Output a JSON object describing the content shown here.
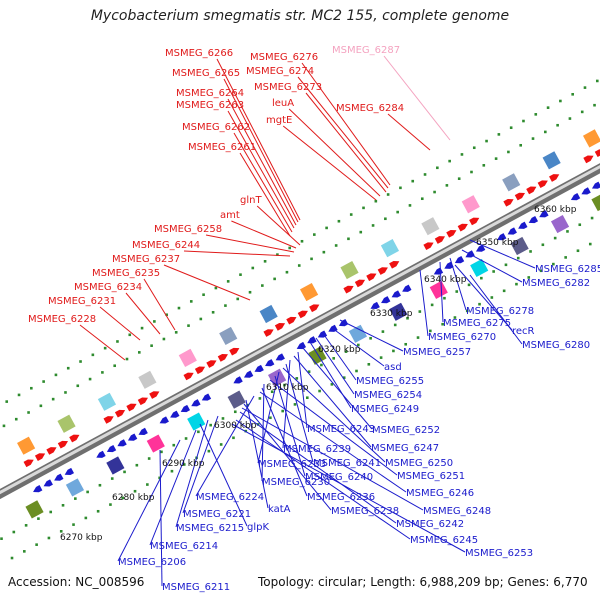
{
  "title": "Mycobacterium smegmatis str. MC2 155, complete genome",
  "footer": {
    "accession": "Accession: NC_008596",
    "topology": "Topology: circular; Length: 6,988,209 bp; Genes: 6,770"
  },
  "colors": {
    "forward_label": "#e01b1b",
    "reverse_label": "#1b1bcc",
    "faded_label": "#f4a3c0",
    "backbone": "#9a9a9a",
    "tick_dot": "#2e8b2e"
  },
  "kbp_ticks": [
    {
      "label": "6270 kbp"
    },
    {
      "label": "6280 kbp"
    },
    {
      "label": "6290 kbp"
    },
    {
      "label": "6300 kbp"
    },
    {
      "label": "6310 kbp"
    },
    {
      "label": "6320 kbp"
    },
    {
      "label": "6330 kbp"
    },
    {
      "label": "6340 kbp"
    },
    {
      "label": "6350 kbp"
    },
    {
      "label": "6360 kbp"
    }
  ],
  "forward_genes": [
    {
      "label": "MSMEG_6266"
    },
    {
      "label": "MSMEG_6265"
    },
    {
      "label": "MSMEG_6264"
    },
    {
      "label": "MSMEG_6263"
    },
    {
      "label": "MSMEG_6262"
    },
    {
      "label": "MSMEG_6261"
    },
    {
      "label": "MSMEG_6276"
    },
    {
      "label": "MSMEG_6274"
    },
    {
      "label": "MSMEG_6273"
    },
    {
      "label": "leuA"
    },
    {
      "label": "mgtE"
    },
    {
      "label": "MSMEG_6284"
    },
    {
      "label": "MSMEG_6287"
    },
    {
      "label": "glnT"
    },
    {
      "label": "amt"
    },
    {
      "label": "MSMEG_6258"
    },
    {
      "label": "MSMEG_6244"
    },
    {
      "label": "MSMEG_6237"
    },
    {
      "label": "MSMEG_6235"
    },
    {
      "label": "MSMEG_6234"
    },
    {
      "label": "MSMEG_6231"
    },
    {
      "label": "MSMEG_6228"
    }
  ],
  "reverse_genes": [
    {
      "label": "MSMEG_6285"
    },
    {
      "label": "MSMEG_6282"
    },
    {
      "label": "MSMEG_6278"
    },
    {
      "label": "MSMEG_6275"
    },
    {
      "label": "recR"
    },
    {
      "label": "MSMEG_6270"
    },
    {
      "label": "MSMEG_6280"
    },
    {
      "label": "MSMEG_6257"
    },
    {
      "label": "asd"
    },
    {
      "label": "MSMEG_6255"
    },
    {
      "label": "MSMEG_6254"
    },
    {
      "label": "MSMEG_6249"
    },
    {
      "label": "MSMEG_6252"
    },
    {
      "label": "MSMEG_6243"
    },
    {
      "label": "MSMEG_6247"
    },
    {
      "label": "MSMEG_6239"
    },
    {
      "label": "MSMEG_6241"
    },
    {
      "label": "MSMEG_6250"
    },
    {
      "label": "MSMEG_6233"
    },
    {
      "label": "MSMEG_6240"
    },
    {
      "label": "MSMEG_6251"
    },
    {
      "label": "MSMEG_6230"
    },
    {
      "label": "MSMEG_6236"
    },
    {
      "label": "MSMEG_6246"
    },
    {
      "label": "MSMEG_6224"
    },
    {
      "label": "katA"
    },
    {
      "label": "MSMEG_6238"
    },
    {
      "label": "MSMEG_6248"
    },
    {
      "label": "MSMEG_6221"
    },
    {
      "label": "MSMEG_6242"
    },
    {
      "label": "MSMEG_6215"
    },
    {
      "label": "glpK"
    },
    {
      "label": "MSMEG_6214"
    },
    {
      "label": "MSMEG_6245"
    },
    {
      "label": "MSMEG_6253"
    },
    {
      "label": "MSMEG_6206"
    },
    {
      "label": "MSMEG_6211"
    }
  ]
}
